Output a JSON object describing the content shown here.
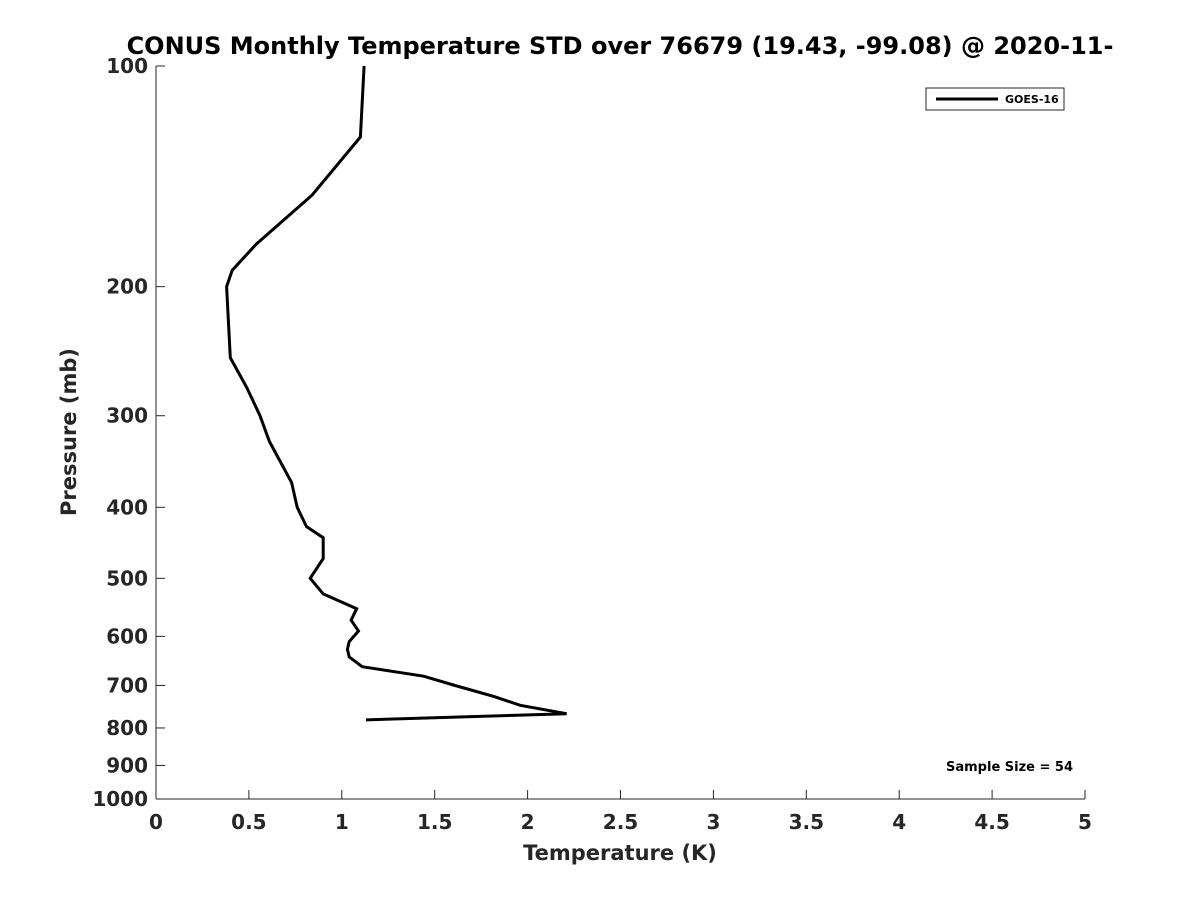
{
  "chart_data": {
    "type": "line",
    "title": "CONUS Monthly Temperature STD over 76679 (19.43, -99.08) @ 2020-11-",
    "xlabel": "Temperature (K)",
    "ylabel": "Pressure (mb)",
    "xlim": [
      0,
      5
    ],
    "ylim": [
      100,
      1000
    ],
    "y_scale": "log",
    "y_reversed": true,
    "x_ticks": [
      "0",
      "0.5",
      "1",
      "1.5",
      "2",
      "2.5",
      "3",
      "3.5",
      "4",
      "4.5",
      "5"
    ],
    "y_ticks": [
      "100",
      "200",
      "300",
      "400",
      "500",
      "600",
      "700",
      "800",
      "900",
      "1000"
    ],
    "grid": false,
    "legend_position": "top-right",
    "series": [
      {
        "name": "GOES-16",
        "color": "#000000",
        "points": [
          {
            "t": 1.12,
            "p": 100
          },
          {
            "t": 1.1,
            "p": 125
          },
          {
            "t": 0.84,
            "p": 150
          },
          {
            "t": 0.54,
            "p": 175
          },
          {
            "t": 0.41,
            "p": 190
          },
          {
            "t": 0.38,
            "p": 200
          },
          {
            "t": 0.4,
            "p": 250
          },
          {
            "t": 0.49,
            "p": 275
          },
          {
            "t": 0.56,
            "p": 300
          },
          {
            "t": 0.61,
            "p": 325
          },
          {
            "t": 0.73,
            "p": 370
          },
          {
            "t": 0.76,
            "p": 400
          },
          {
            "t": 0.81,
            "p": 425
          },
          {
            "t": 0.9,
            "p": 440
          },
          {
            "t": 0.9,
            "p": 470
          },
          {
            "t": 0.83,
            "p": 500
          },
          {
            "t": 0.9,
            "p": 525
          },
          {
            "t": 1.08,
            "p": 550
          },
          {
            "t": 1.05,
            "p": 570
          },
          {
            "t": 1.09,
            "p": 590
          },
          {
            "t": 1.04,
            "p": 610
          },
          {
            "t": 1.03,
            "p": 625
          },
          {
            "t": 1.04,
            "p": 640
          },
          {
            "t": 1.11,
            "p": 660
          },
          {
            "t": 1.44,
            "p": 680
          },
          {
            "t": 1.61,
            "p": 700
          },
          {
            "t": 1.82,
            "p": 725
          },
          {
            "t": 1.96,
            "p": 745
          },
          {
            "t": 2.21,
            "p": 765
          },
          {
            "t": 1.13,
            "p": 780
          }
        ]
      }
    ],
    "annotations": [
      "Sample Size = 54"
    ]
  }
}
